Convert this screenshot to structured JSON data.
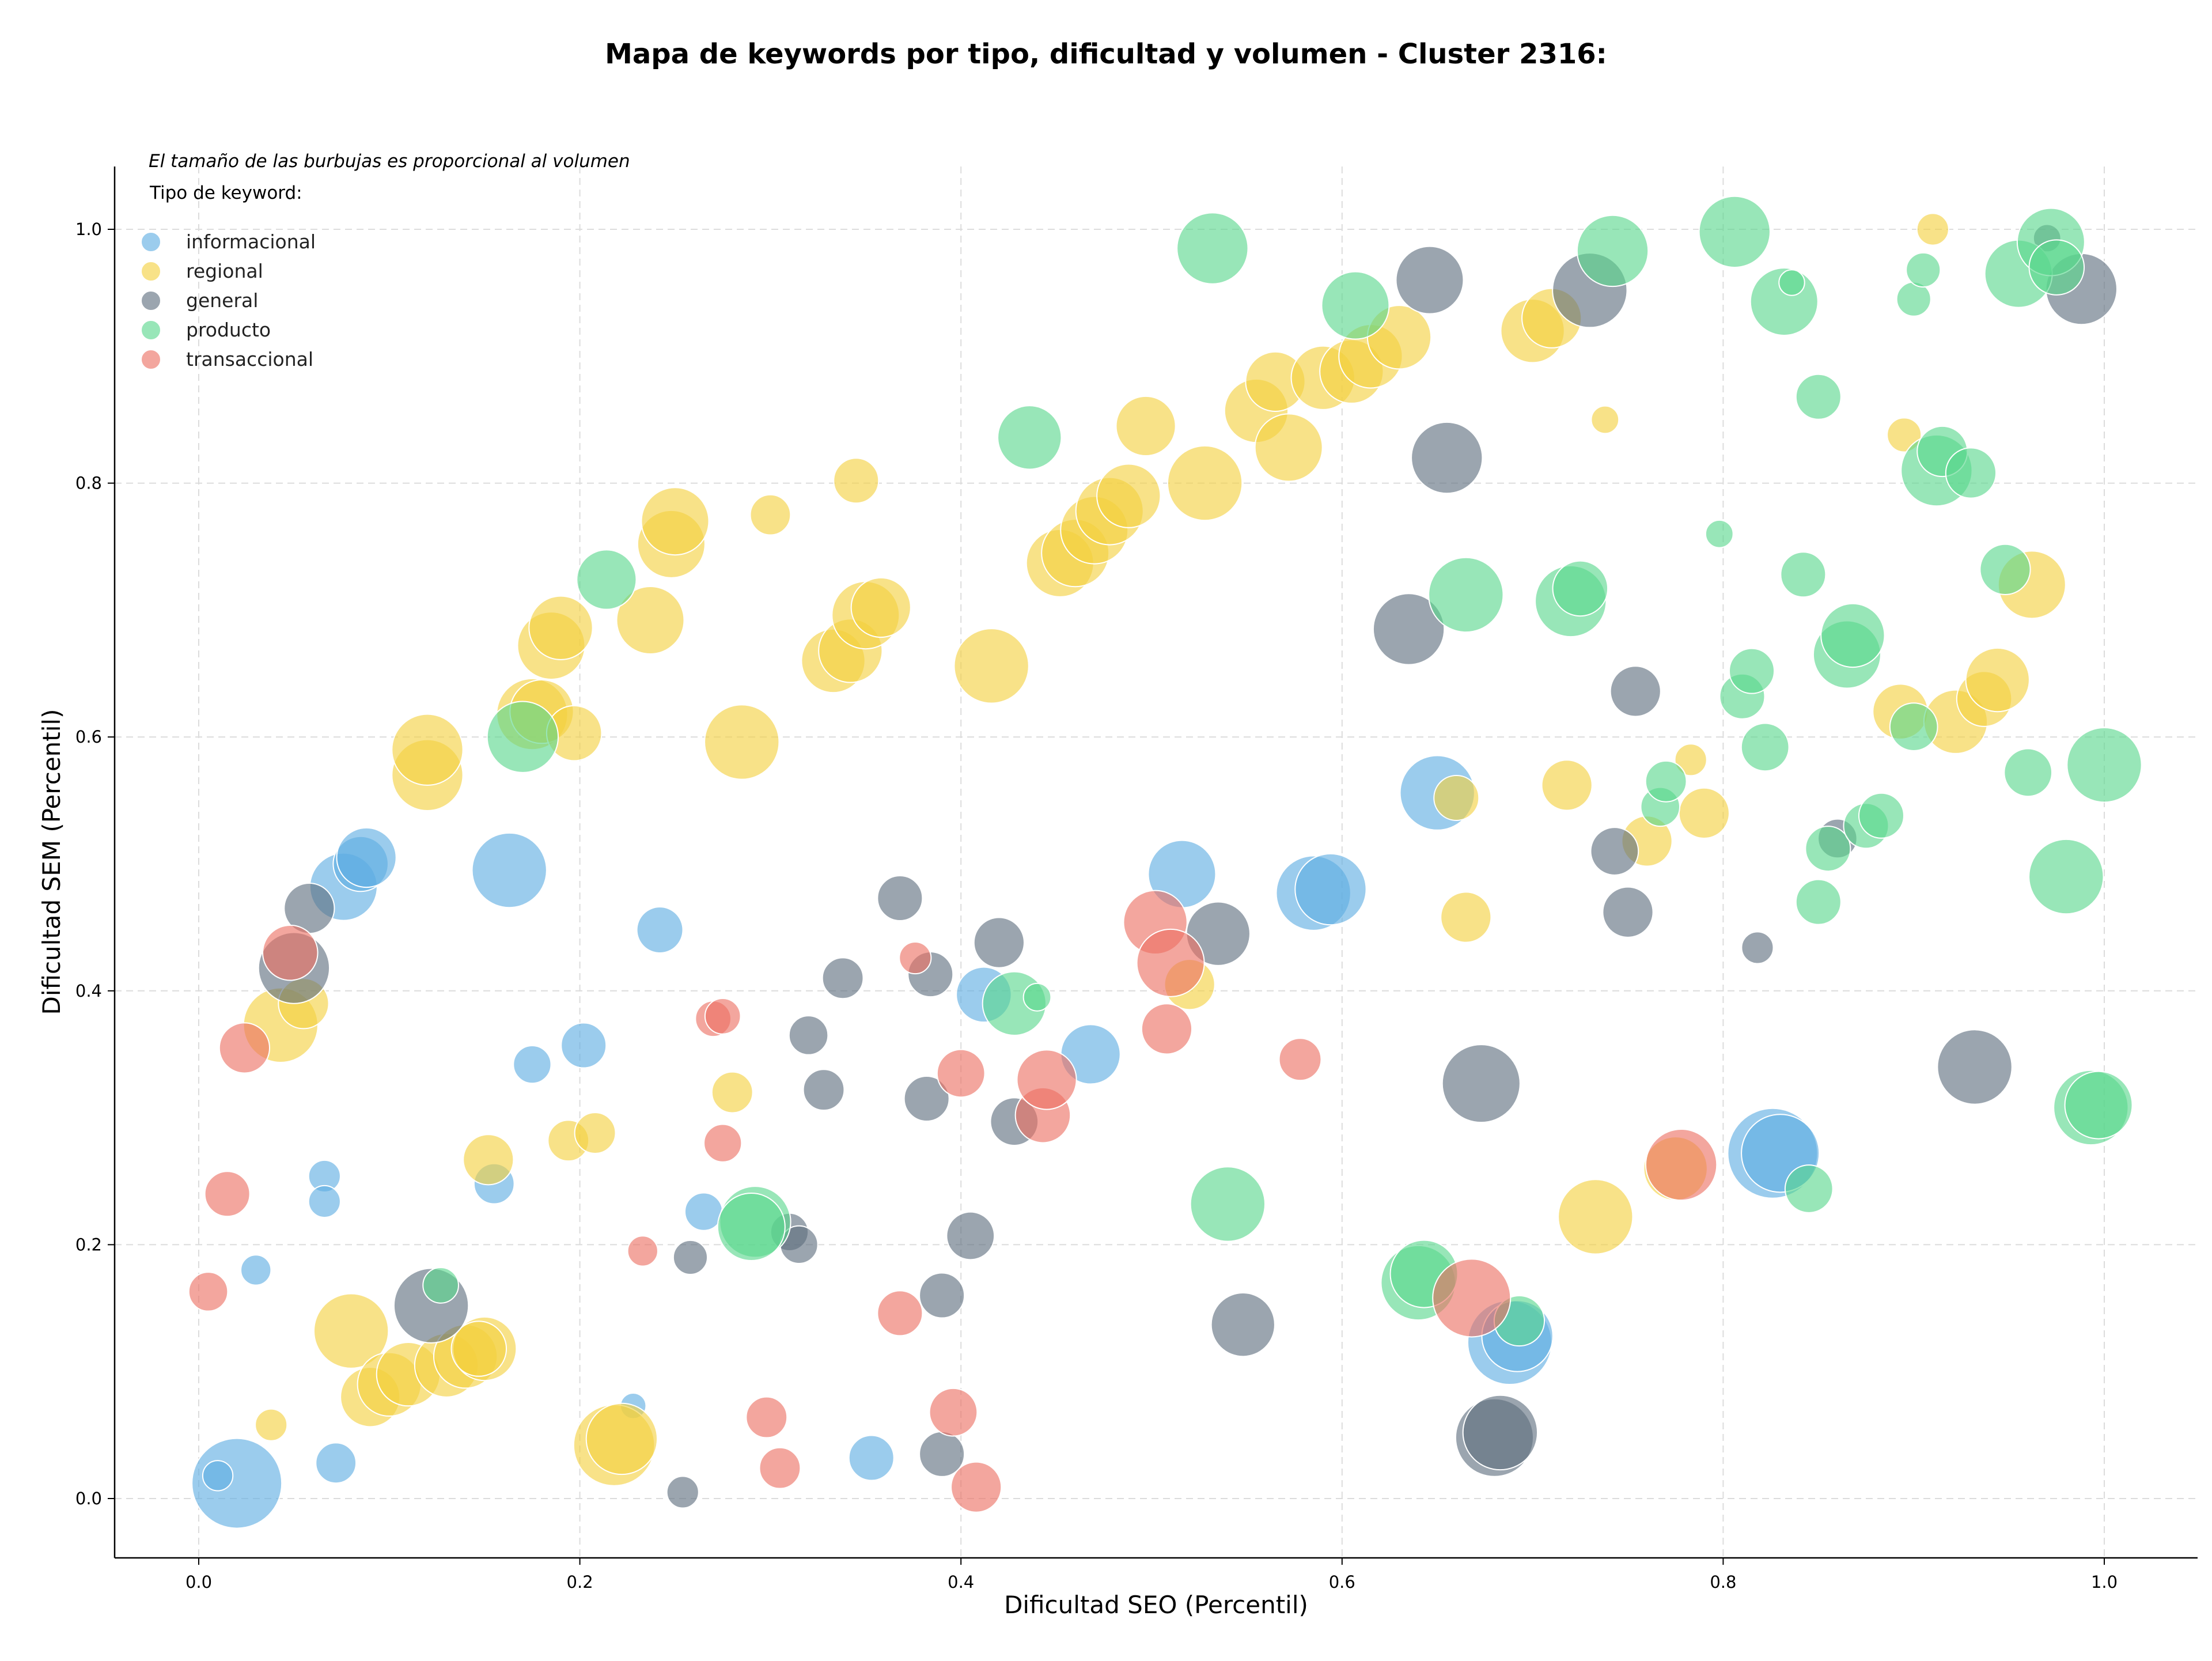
{
  "chart_data": {
    "type": "scatter",
    "title": "Mapa de keywords por tipo, dificultad y volumen - Cluster 2316:",
    "xlabel": "Dificultad SEO (Percentil)",
    "ylabel": "Dificultad SEM (Percentil)",
    "xlim": [
      -0.045,
      1.05
    ],
    "ylim": [
      -0.045,
      1.05
    ],
    "xticks": [
      0.0,
      0.2,
      0.4,
      0.6,
      0.8,
      1.0
    ],
    "yticks": [
      0.0,
      0.2,
      0.4,
      0.6,
      0.8,
      1.0
    ],
    "xtick_labels": [
      "0.0",
      "0.2",
      "0.4",
      "0.6",
      "0.8",
      "1.0"
    ],
    "ytick_labels": [
      "0.0",
      "0.2",
      "0.4",
      "0.6",
      "0.8",
      "1.0"
    ],
    "grid": true,
    "legend": {
      "placement": "top-left",
      "note": "El tamaño de las burbujas es proporcional al volumen",
      "title": "Tipo de keyword:"
    },
    "series": [
      {
        "name": "informacional",
        "color": "#5DADE2",
        "points": [
          [
            0.02,
            0.012,
            1600
          ],
          [
            0.01,
            0.018,
            180
          ],
          [
            0.03,
            0.18,
            180
          ],
          [
            0.072,
            0.028,
            320
          ],
          [
            0.066,
            0.254,
            200
          ],
          [
            0.066,
            0.234,
            200
          ],
          [
            0.076,
            0.482,
            900
          ],
          [
            0.085,
            0.5,
            600
          ],
          [
            0.088,
            0.505,
            700
          ],
          [
            0.163,
            0.495,
            1100
          ],
          [
            0.175,
            0.342,
            280
          ],
          [
            0.155,
            0.248,
            320
          ],
          [
            0.202,
            0.357,
            400
          ],
          [
            0.228,
            0.073,
            130
          ],
          [
            0.242,
            0.448,
            420
          ],
          [
            0.265,
            0.226,
            280
          ],
          [
            0.353,
            0.032,
            400
          ],
          [
            0.412,
            0.397,
            600
          ],
          [
            0.468,
            0.35,
            700
          ],
          [
            0.516,
            0.492,
            900
          ],
          [
            0.585,
            0.477,
            1100
          ],
          [
            0.594,
            0.48,
            1000
          ],
          [
            0.65,
            0.556,
            1100
          ],
          [
            0.826,
            0.272,
            1600
          ],
          [
            0.83,
            0.272,
            1200
          ],
          [
            0.688,
            0.123,
            1400
          ],
          [
            0.692,
            0.128,
            1000
          ]
        ]
      },
      {
        "name": "regional",
        "color": "#F4D03F",
        "points": [
          [
            0.043,
            0.373,
            1100
          ],
          [
            0.055,
            0.39,
            500
          ],
          [
            0.08,
            0.132,
            1100
          ],
          [
            0.09,
            0.08,
            700
          ],
          [
            0.1,
            0.09,
            800
          ],
          [
            0.11,
            0.098,
            800
          ],
          [
            0.13,
            0.105,
            800
          ],
          [
            0.14,
            0.112,
            800
          ],
          [
            0.15,
            0.118,
            800
          ],
          [
            0.147,
            0.118,
            600
          ],
          [
            0.038,
            0.058,
            200
          ],
          [
            0.12,
            0.57,
            1000
          ],
          [
            0.12,
            0.59,
            1000
          ],
          [
            0.175,
            0.618,
            1000
          ],
          [
            0.18,
            0.62,
            800
          ],
          [
            0.197,
            0.603,
            600
          ],
          [
            0.185,
            0.672,
            900
          ],
          [
            0.19,
            0.686,
            800
          ],
          [
            0.237,
            0.692,
            900
          ],
          [
            0.248,
            0.752,
            900
          ],
          [
            0.25,
            0.77,
            900
          ],
          [
            0.3,
            0.775,
            320
          ],
          [
            0.345,
            0.802,
            400
          ],
          [
            0.152,
            0.267,
            500
          ],
          [
            0.194,
            0.282,
            330
          ],
          [
            0.208,
            0.288,
            330
          ],
          [
            0.218,
            0.042,
            1300
          ],
          [
            0.222,
            0.047,
            1000
          ],
          [
            0.28,
            0.32,
            330
          ],
          [
            0.285,
            0.596,
            1100
          ],
          [
            0.333,
            0.66,
            800
          ],
          [
            0.342,
            0.668,
            800
          ],
          [
            0.35,
            0.696,
            900
          ],
          [
            0.358,
            0.702,
            700
          ],
          [
            0.416,
            0.656,
            1100
          ],
          [
            0.452,
            0.737,
            900
          ],
          [
            0.46,
            0.745,
            900
          ],
          [
            0.47,
            0.763,
            900
          ],
          [
            0.478,
            0.778,
            900
          ],
          [
            0.488,
            0.79,
            800
          ],
          [
            0.497,
            0.845,
            700
          ],
          [
            0.52,
            0.405,
            500
          ],
          [
            0.528,
            0.8,
            1100
          ],
          [
            0.555,
            0.857,
            800
          ],
          [
            0.565,
            0.88,
            700
          ],
          [
            0.572,
            0.828,
            900
          ],
          [
            0.59,
            0.883,
            800
          ],
          [
            0.605,
            0.888,
            800
          ],
          [
            0.615,
            0.9,
            800
          ],
          [
            0.63,
            0.915,
            800
          ],
          [
            0.66,
            0.552,
            400
          ],
          [
            0.665,
            0.458,
            500
          ],
          [
            0.7,
            0.92,
            800
          ],
          [
            0.71,
            0.93,
            700
          ],
          [
            0.718,
            0.562,
            500
          ],
          [
            0.733,
            0.222,
            1100
          ],
          [
            0.738,
            0.85,
            150
          ],
          [
            0.76,
            0.518,
            500
          ],
          [
            0.775,
            0.26,
            800
          ],
          [
            0.783,
            0.582,
            200
          ],
          [
            0.79,
            0.54,
            500
          ],
          [
            0.893,
            0.62,
            600
          ],
          [
            0.91,
            1.0,
            200
          ],
          [
            0.895,
            0.838,
            230
          ],
          [
            0.922,
            0.612,
            800
          ],
          [
            0.937,
            0.63,
            600
          ],
          [
            0.944,
            0.645,
            800
          ],
          [
            0.962,
            0.72,
            900
          ]
        ]
      },
      {
        "name": "general",
        "color": "#5D6D7E",
        "points": [
          [
            0.058,
            0.465,
            500
          ],
          [
            0.05,
            0.418,
            1000
          ],
          [
            0.122,
            0.152,
            1100
          ],
          [
            0.254,
            0.005,
            200
          ],
          [
            0.258,
            0.19,
            230
          ],
          [
            0.31,
            0.21,
            280
          ],
          [
            0.315,
            0.2,
            280
          ],
          [
            0.32,
            0.365,
            300
          ],
          [
            0.328,
            0.322,
            330
          ],
          [
            0.338,
            0.41,
            330
          ],
          [
            0.368,
            0.473,
            400
          ],
          [
            0.382,
            0.315,
            400
          ],
          [
            0.384,
            0.413,
            400
          ],
          [
            0.39,
            0.16,
            400
          ],
          [
            0.39,
            0.035,
            400
          ],
          [
            0.405,
            0.207,
            450
          ],
          [
            0.42,
            0.438,
            500
          ],
          [
            0.428,
            0.297,
            450
          ],
          [
            0.535,
            0.445,
            800
          ],
          [
            0.548,
            0.137,
            800
          ],
          [
            0.646,
            0.96,
            900
          ],
          [
            0.635,
            0.685,
            1000
          ],
          [
            0.655,
            0.82,
            1000
          ],
          [
            0.673,
            0.327,
            1200
          ],
          [
            0.68,
            0.048,
            1200
          ],
          [
            0.683,
            0.052,
            1100
          ],
          [
            0.73,
            0.952,
            1100
          ],
          [
            0.743,
            0.51,
            450
          ],
          [
            0.75,
            0.462,
            500
          ],
          [
            0.754,
            0.636,
            500
          ],
          [
            0.818,
            0.434,
            200
          ],
          [
            0.86,
            0.52,
            300
          ],
          [
            0.932,
            0.34,
            1100
          ],
          [
            0.97,
            0.993,
            150
          ],
          [
            0.988,
            0.953,
            1000
          ]
        ]
      },
      {
        "name": "producto",
        "color": "#58D68D",
        "points": [
          [
            0.127,
            0.168,
            250
          ],
          [
            0.17,
            0.6,
            1000
          ],
          [
            0.214,
            0.724,
            700
          ],
          [
            0.292,
            0.218,
            1000
          ],
          [
            0.29,
            0.214,
            900
          ],
          [
            0.428,
            0.39,
            800
          ],
          [
            0.44,
            0.395,
            150
          ],
          [
            0.436,
            0.836,
            800
          ],
          [
            0.54,
            0.232,
            1100
          ],
          [
            0.532,
            0.985,
            1000
          ],
          [
            0.607,
            0.94,
            900
          ],
          [
            0.64,
            0.17,
            1100
          ],
          [
            0.643,
            0.177,
            900
          ],
          [
            0.665,
            0.712,
            1100
          ],
          [
            0.693,
            0.14,
            500
          ],
          [
            0.72,
            0.707,
            1000
          ],
          [
            0.725,
            0.717,
            600
          ],
          [
            0.742,
            0.983,
            1000
          ],
          [
            0.767,
            0.545,
            300
          ],
          [
            0.77,
            0.565,
            330
          ],
          [
            0.798,
            0.76,
            150
          ],
          [
            0.806,
            0.998,
            1000
          ],
          [
            0.81,
            0.632,
            400
          ],
          [
            0.815,
            0.652,
            400
          ],
          [
            0.822,
            0.592,
            450
          ],
          [
            0.832,
            0.943,
            900
          ],
          [
            0.836,
            0.958,
            130
          ],
          [
            0.842,
            0.728,
            400
          ],
          [
            0.845,
            0.244,
            450
          ],
          [
            0.85,
            0.47,
            400
          ],
          [
            0.85,
            0.868,
            400
          ],
          [
            0.855,
            0.512,
            400
          ],
          [
            0.865,
            0.665,
            900
          ],
          [
            0.868,
            0.68,
            800
          ],
          [
            0.875,
            0.53,
            400
          ],
          [
            0.883,
            0.538,
            400
          ],
          [
            0.9,
            0.608,
            450
          ],
          [
            0.9,
            0.945,
            230
          ],
          [
            0.905,
            0.968,
            230
          ],
          [
            0.912,
            0.81,
            1000
          ],
          [
            0.915,
            0.825,
            500
          ],
          [
            0.93,
            0.808,
            500
          ],
          [
            0.948,
            0.732,
            500
          ],
          [
            0.955,
            0.965,
            900
          ],
          [
            0.96,
            0.572,
            450
          ],
          [
            0.972,
            0.99,
            900
          ],
          [
            0.975,
            0.97,
            600
          ],
          [
            0.98,
            0.49,
            1100
          ],
          [
            0.993,
            0.308,
            1100
          ],
          [
            0.997,
            0.31,
            900
          ],
          [
            1.0,
            0.578,
            1100
          ]
        ]
      },
      {
        "name": "transaccional",
        "color": "#EC7063",
        "points": [
          [
            0.005,
            0.163,
            300
          ],
          [
            0.015,
            0.24,
            400
          ],
          [
            0.024,
            0.355,
            500
          ],
          [
            0.048,
            0.43,
            600
          ],
          [
            0.233,
            0.195,
            180
          ],
          [
            0.27,
            0.378,
            250
          ],
          [
            0.275,
            0.38,
            250
          ],
          [
            0.275,
            0.28,
            280
          ],
          [
            0.298,
            0.064,
            330
          ],
          [
            0.305,
            0.024,
            330
          ],
          [
            0.368,
            0.146,
            400
          ],
          [
            0.376,
            0.426,
            200
          ],
          [
            0.4,
            0.335,
            450
          ],
          [
            0.396,
            0.068,
            450
          ],
          [
            0.408,
            0.009,
            500
          ],
          [
            0.443,
            0.302,
            600
          ],
          [
            0.445,
            0.33,
            700
          ],
          [
            0.502,
            0.454,
            800
          ],
          [
            0.51,
            0.422,
            900
          ],
          [
            0.508,
            0.37,
            500
          ],
          [
            0.578,
            0.346,
            350
          ],
          [
            0.668,
            0.158,
            1200
          ],
          [
            0.778,
            0.263,
            1000
          ]
        ]
      }
    ]
  }
}
